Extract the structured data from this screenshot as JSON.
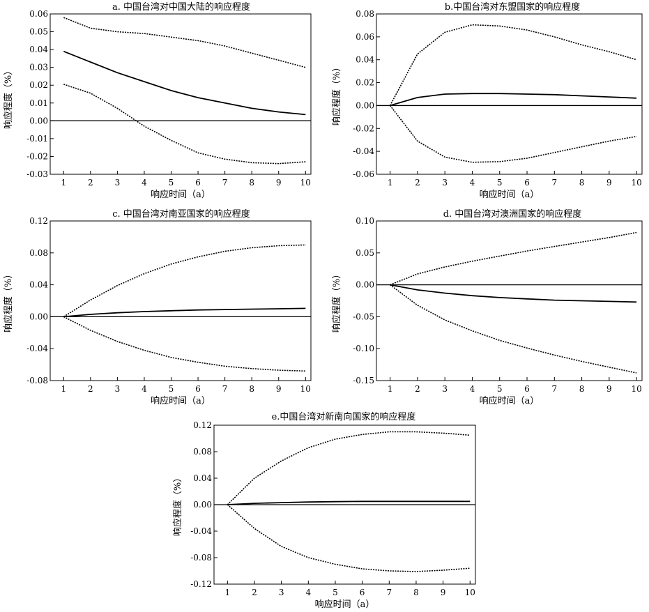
{
  "chart_data": [
    {
      "type": "line",
      "title": "a. 中国台湾对中国大陆的响应程度",
      "xlabel": "响应时间（a）",
      "ylabel": "响应程度（%）",
      "x": [
        1,
        2,
        3,
        4,
        5,
        6,
        7,
        8,
        9,
        10
      ],
      "xlim": [
        0.5,
        10.2
      ],
      "ylim": [
        -0.03,
        0.06
      ],
      "yticks": [
        "0.06",
        "0.05",
        "0.04",
        "0.03",
        "0.02",
        "0.01",
        "0.00",
        "-0.01",
        "-0.02",
        "-0.03"
      ],
      "series": [
        {
          "values": [
            0.058,
            0.052,
            0.05,
            0.049,
            0.047,
            0.045,
            0.042,
            0.038,
            0.034,
            0.03
          ],
          "style": "dashed"
        },
        {
          "values": [
            0.039,
            0.033,
            0.027,
            0.022,
            0.017,
            0.013,
            0.01,
            0.007,
            0.005,
            0.0035
          ],
          "style": "solid"
        },
        {
          "values": [
            0.0205,
            0.0155,
            0.007,
            -0.003,
            -0.011,
            -0.018,
            -0.0215,
            -0.0235,
            -0.024,
            -0.023
          ],
          "style": "dashed"
        }
      ]
    },
    {
      "type": "line",
      "title": "b.中国台湾对东盟国家的响应程度",
      "xlabel": "响应时间（a）",
      "ylabel": "响应程度（%）",
      "x": [
        1,
        2,
        3,
        4,
        5,
        6,
        7,
        8,
        9,
        10
      ],
      "xlim": [
        0.5,
        10.2
      ],
      "ylim": [
        -0.06,
        0.08
      ],
      "yticks": [
        "0.08",
        "0.06",
        "0.04",
        "0.02",
        "0.00",
        "-0.02",
        "-0.04",
        "-0.06"
      ],
      "series": [
        {
          "values": [
            0.0,
            0.045,
            0.064,
            0.0705,
            0.0695,
            0.066,
            0.06,
            0.053,
            0.047,
            0.04
          ],
          "style": "dashed"
        },
        {
          "values": [
            0.0,
            0.007,
            0.01,
            0.0105,
            0.0105,
            0.01,
            0.0095,
            0.0085,
            0.0075,
            0.0065
          ],
          "style": "solid"
        },
        {
          "values": [
            0.0,
            -0.031,
            -0.045,
            -0.0495,
            -0.049,
            -0.046,
            -0.041,
            -0.036,
            -0.031,
            -0.027
          ],
          "style": "dashed"
        }
      ]
    },
    {
      "type": "line",
      "title": "c. 中国台湾对南亚国家的响应程度",
      "xlabel": "响应时间（a）",
      "ylabel": "响应程度（%）",
      "x": [
        1,
        2,
        3,
        4,
        5,
        6,
        7,
        8,
        9,
        10
      ],
      "xlim": [
        0.5,
        10.2
      ],
      "ylim": [
        -0.08,
        0.12
      ],
      "yticks": [
        "0.12",
        "0.08",
        "0.04",
        "0.00",
        "-0.04",
        "-0.08"
      ],
      "series": [
        {
          "values": [
            0.0,
            0.021,
            0.039,
            0.054,
            0.066,
            0.075,
            0.082,
            0.0865,
            0.089,
            0.09
          ],
          "style": "dashed"
        },
        {
          "values": [
            0.0,
            0.003,
            0.005,
            0.0065,
            0.0075,
            0.0085,
            0.009,
            0.0095,
            0.01,
            0.0105
          ],
          "style": "solid"
        },
        {
          "values": [
            0.0,
            -0.017,
            -0.031,
            -0.042,
            -0.051,
            -0.057,
            -0.062,
            -0.065,
            -0.067,
            -0.068
          ],
          "style": "dashed"
        }
      ]
    },
    {
      "type": "line",
      "title": "d. 中国台湾对澳洲国家的响应程度",
      "xlabel": "响应时间（a）",
      "ylabel": "响应程度（%）",
      "x": [
        1,
        2,
        3,
        4,
        5,
        6,
        7,
        8,
        9,
        10
      ],
      "xlim": [
        0.5,
        10.2
      ],
      "ylim": [
        -0.15,
        0.1
      ],
      "yticks": [
        "0.10",
        "0.05",
        "0.00",
        "-0.05",
        "-0.10",
        "-0.15"
      ],
      "series": [
        {
          "values": [
            0.0,
            0.017,
            0.028,
            0.037,
            0.045,
            0.053,
            0.06,
            0.067,
            0.074,
            0.082
          ],
          "style": "dashed"
        },
        {
          "values": [
            0.0,
            -0.008,
            -0.013,
            -0.017,
            -0.02,
            -0.022,
            -0.024,
            -0.025,
            -0.026,
            -0.027
          ],
          "style": "solid"
        },
        {
          "values": [
            0.0,
            -0.032,
            -0.055,
            -0.072,
            -0.087,
            -0.099,
            -0.11,
            -0.12,
            -0.129,
            -0.138
          ],
          "style": "dashed"
        }
      ]
    },
    {
      "type": "line",
      "title": "e.中国台湾对新南向国家的响应程度",
      "xlabel": "响应时间（a）",
      "ylabel": "响应程度（%）",
      "x": [
        1,
        2,
        3,
        4,
        5,
        6,
        7,
        8,
        9,
        10
      ],
      "xlim": [
        0.5,
        10.2
      ],
      "ylim": [
        -0.12,
        0.12
      ],
      "yticks": [
        "0.12",
        "0.08",
        "0.04",
        "0.00",
        "-0.04",
        "-0.08",
        "-0.12"
      ],
      "series": [
        {
          "values": [
            0.0,
            0.04,
            0.066,
            0.086,
            0.099,
            0.106,
            0.11,
            0.11,
            0.108,
            0.105
          ],
          "style": "dashed"
        },
        {
          "values": [
            0.0,
            0.002,
            0.003,
            0.004,
            0.0045,
            0.005,
            0.005,
            0.005,
            0.005,
            0.005
          ],
          "style": "solid"
        },
        {
          "values": [
            0.0,
            -0.036,
            -0.063,
            -0.08,
            -0.09,
            -0.097,
            -0.1,
            -0.101,
            -0.099,
            -0.096
          ],
          "style": "dashed"
        }
      ]
    }
  ]
}
